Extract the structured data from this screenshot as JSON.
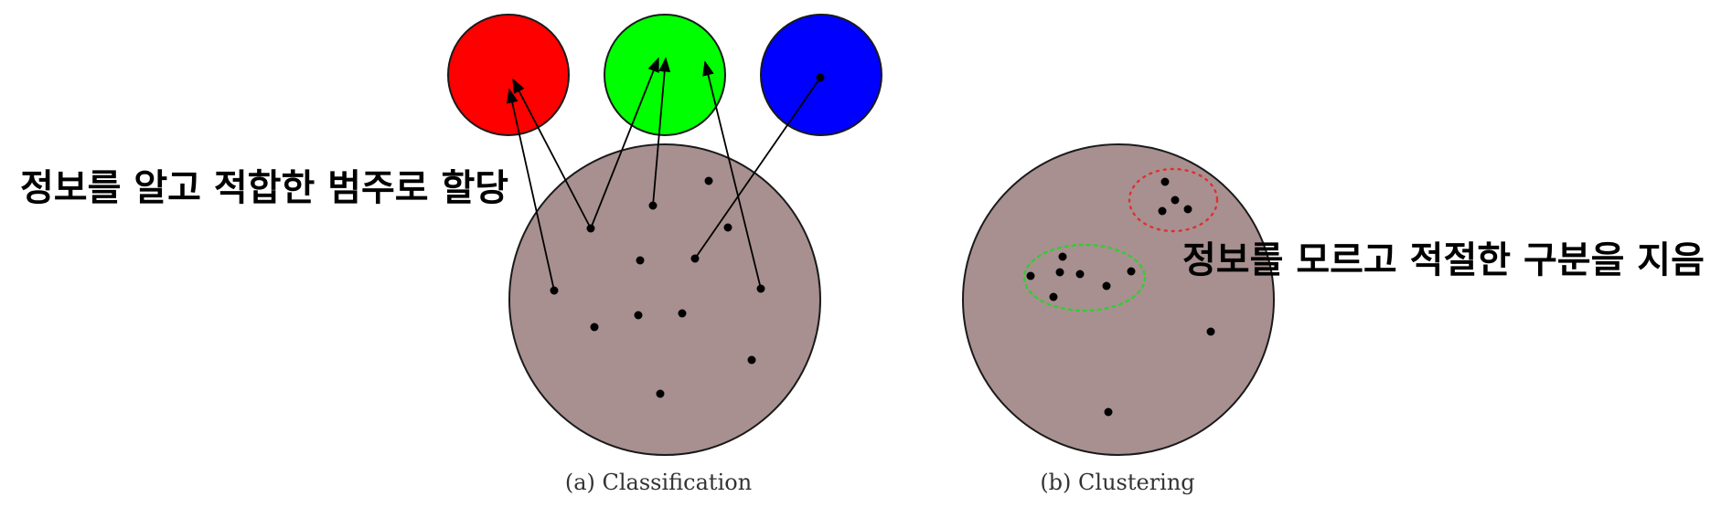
{
  "annotations": {
    "classification_note": "정보를 알고 적합한 범주로  할당",
    "clustering_note": "정보를 모르고 적절한 구분을 지음"
  },
  "captions": {
    "classification": "(a) Classification",
    "clustering": "(b) Clustering"
  },
  "colors": {
    "class_red": "#ff0000",
    "class_green": "#00ff00",
    "class_blue": "#0000ff",
    "population_fill": "#a89090",
    "cluster_red_outline": "#e03030",
    "cluster_green_outline": "#33cc33",
    "label_text": "#000000"
  },
  "panels": {
    "classification": {
      "class_count": 3,
      "point_count": 14,
      "arrow_count": 5
    },
    "clustering": {
      "cluster_count": 2,
      "point_count": 12
    }
  }
}
